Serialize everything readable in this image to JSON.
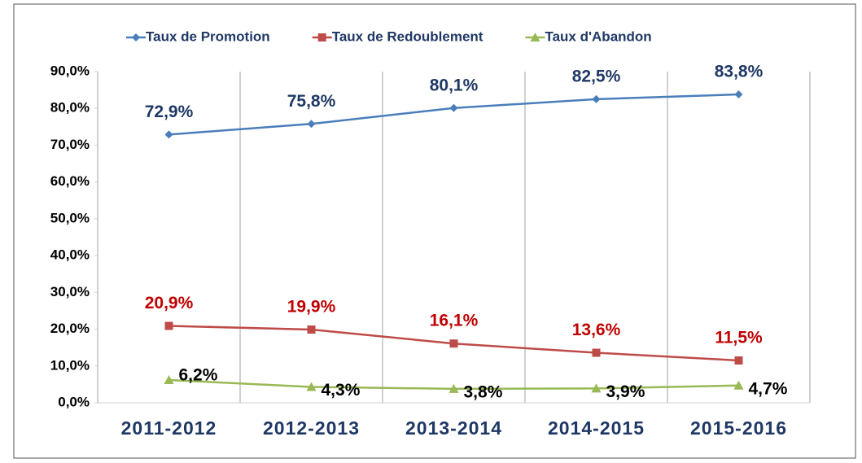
{
  "chart_data": {
    "type": "line",
    "categories": [
      "2011-2012",
      "2012-2013",
      "2013-2014",
      "2014-2015",
      "2015-2016"
    ],
    "series": [
      {
        "name": "Taux de Promotion",
        "color": "#4a7ebb",
        "label_color": "#1f3864",
        "marker": "diamond",
        "values": [
          72.9,
          75.8,
          80.1,
          82.5,
          83.8
        ],
        "value_labels": [
          "72,9%",
          "75,8%",
          "80,1%",
          "82,5%",
          "83,8%"
        ]
      },
      {
        "name": "Taux de Redoublement",
        "color": "#be4b48",
        "label_color": "#c00000",
        "marker": "square",
        "values": [
          20.9,
          19.9,
          16.1,
          13.6,
          11.5
        ],
        "value_labels": [
          "20,9%",
          "19,9%",
          "16,1%",
          "13,6%",
          "11,5%"
        ]
      },
      {
        "name": "Taux d'Abandon",
        "color": "#98b954",
        "label_color": "#000000",
        "marker": "triangle",
        "values": [
          6.2,
          4.3,
          3.8,
          3.9,
          4.7
        ],
        "value_labels": [
          "6,2%",
          "4,3%",
          "3,8%",
          "3,9%",
          "4,7%"
        ]
      }
    ],
    "ylim": [
      0,
      90
    ],
    "yticks": [
      {
        "value": 0,
        "label": "0,0%"
      },
      {
        "value": 10,
        "label": "10,0%"
      },
      {
        "value": 20,
        "label": "20,0%"
      },
      {
        "value": 30,
        "label": "30,0%"
      },
      {
        "value": 40,
        "label": "40,0%"
      },
      {
        "value": 50,
        "label": "50,0%"
      },
      {
        "value": 60,
        "label": "60,0%"
      },
      {
        "value": 70,
        "label": "70,0%"
      },
      {
        "value": 80,
        "label": "80,0%"
      },
      {
        "value": 90,
        "label": "90,0%"
      }
    ],
    "grid": "vertical",
    "legend": "top"
  }
}
